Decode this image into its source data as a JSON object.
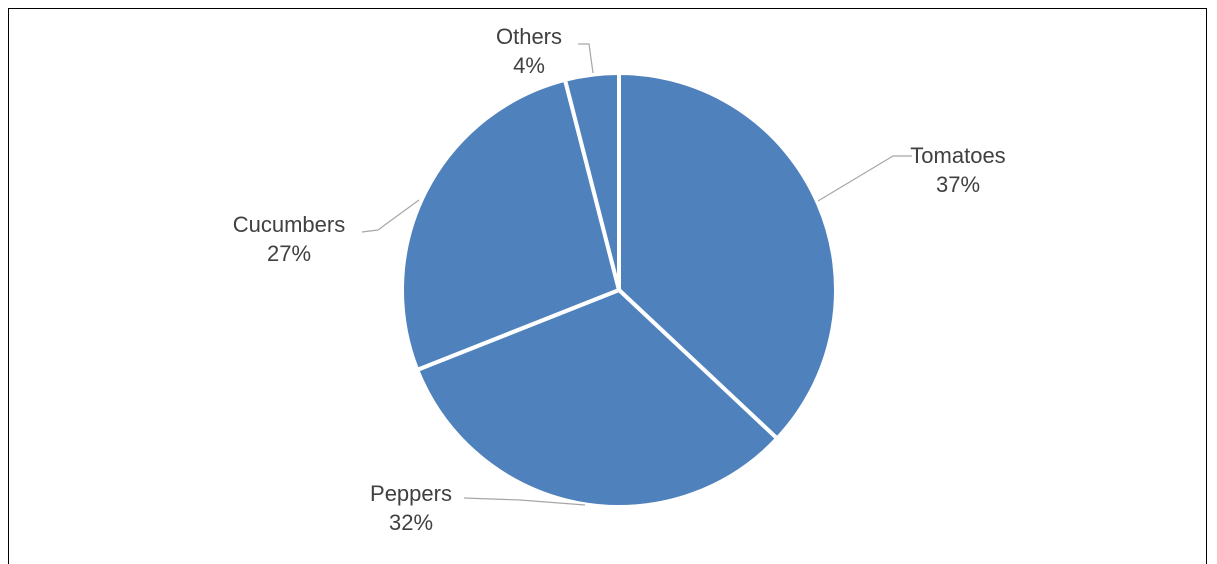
{
  "chart_data": {
    "type": "pie",
    "title": "",
    "categories": [
      "Tomatoes",
      "Peppers",
      "Cucumbers",
      "Others"
    ],
    "values": [
      37,
      32,
      27,
      4
    ],
    "value_labels": [
      "37%",
      "32%",
      "27%",
      "4%"
    ],
    "start_angle_deg": 0,
    "direction": "clockwise",
    "legend": "none",
    "data_labels": "outside-with-leader-lines",
    "colors": {
      "slice": "#4f81bd",
      "slice_border": "#ffffff",
      "leader_line": "#a6a6a6",
      "label_text": "#404040"
    }
  }
}
